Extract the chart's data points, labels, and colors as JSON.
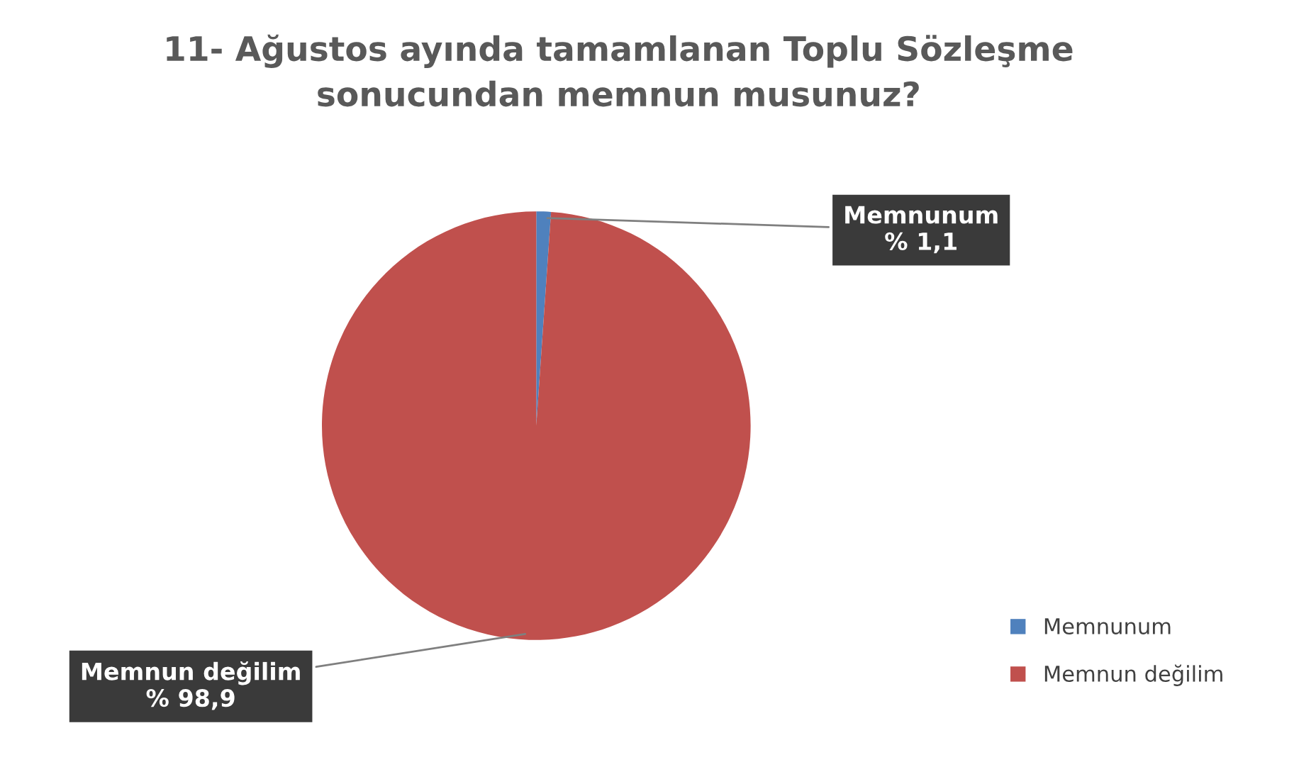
{
  "chart_data": {
    "type": "pie",
    "title": "11- Ağustos ayında tamamlanan Toplu Sözleşme\nsonucundan memnun musunuz?",
    "categories": [
      "Memnunum",
      "Memnun değilim"
    ],
    "values": [
      1.1,
      98.9
    ],
    "colors": [
      "#4f81bd",
      "#c0504d"
    ],
    "value_labels": [
      "% 1,1",
      "% 98,9"
    ],
    "legend": "bottom right"
  }
}
